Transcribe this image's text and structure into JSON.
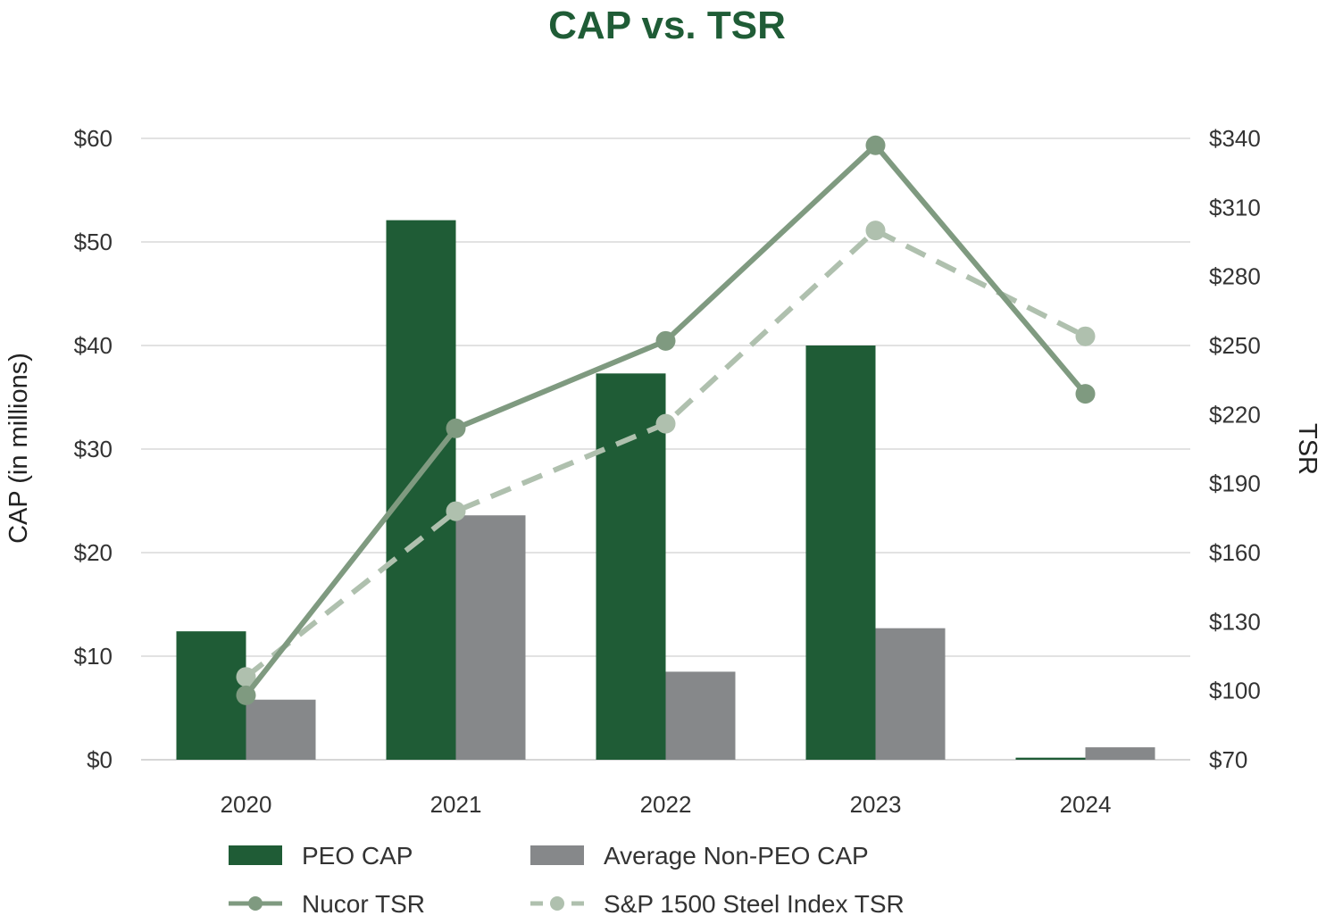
{
  "colors": {
    "title": "#1f5c36",
    "peo_bar": "#1f5c36",
    "nonpeo_bar": "#86888a",
    "nucor_line": "#7f9a80",
    "sp_line": "#afc0ae",
    "grid": "#d9d9d9",
    "text": "#333333"
  },
  "chart_data": {
    "type": "bar",
    "title": "CAP vs. TSR",
    "categories": [
      "2020",
      "2021",
      "2022",
      "2023",
      "2024"
    ],
    "xlabel": "",
    "ylabel": "CAP (in millions)",
    "y2label": "TSR",
    "ylim": [
      0,
      60
    ],
    "y2lim": [
      70,
      340
    ],
    "yticks": [
      "$0",
      "$10",
      "$20",
      "$30",
      "$40",
      "$50",
      "$60"
    ],
    "y2ticks": [
      "$70",
      "$100",
      "$130",
      "$160",
      "$190",
      "$220",
      "$250",
      "$280",
      "$310",
      "$340"
    ],
    "grid": true,
    "legend_position": "bottom",
    "series": [
      {
        "name": "PEO CAP",
        "kind": "bar",
        "axis": "left",
        "values": [
          12.4,
          52.1,
          37.3,
          40.0,
          0.2
        ]
      },
      {
        "name": "Average Non-PEO CAP",
        "kind": "bar",
        "axis": "left",
        "values": [
          5.8,
          23.6,
          8.5,
          12.7,
          1.2
        ]
      },
      {
        "name": "Nucor TSR",
        "kind": "line",
        "axis": "right",
        "marker": "circle",
        "dash": "solid",
        "values": [
          98,
          214,
          252,
          337,
          229
        ]
      },
      {
        "name": "S&P 1500 Steel Index TSR",
        "kind": "line",
        "axis": "right",
        "marker": "circle",
        "dash": "dashed",
        "values": [
          106,
          178,
          216,
          300,
          254
        ]
      }
    ]
  }
}
